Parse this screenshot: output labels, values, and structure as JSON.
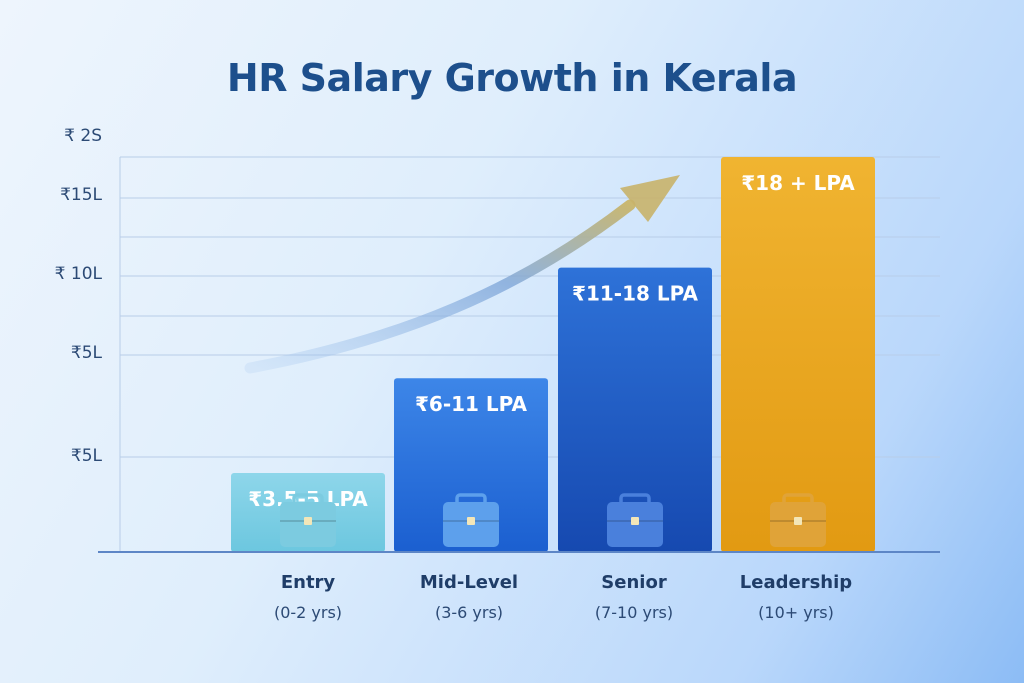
{
  "chart_data": {
    "type": "bar",
    "title": "HR Salary Growth in Kerala",
    "y_tick_labels": [
      "₹ 2S",
      "₹15L",
      "₹ 10L",
      "₹5L",
      "₹5L"
    ],
    "categories": [
      "Entry",
      "Mid-Level",
      "Senior",
      "Leadership"
    ],
    "category_subtitles": [
      "(0-2 yrs)",
      "(3-6 yrs)",
      "(7-10 yrs)",
      "(10+ yrs)"
    ],
    "data_labels": [
      "₹3.5-5 LPA",
      "₹6-11 LPA",
      "₹11-18 LPA",
      "₹18 + LPA"
    ],
    "values": [
      5,
      11,
      18,
      25
    ],
    "ylim": [
      0,
      25
    ],
    "grid": true,
    "legend": "none",
    "trend_arrow": true,
    "icon": "briefcase-icon",
    "colors": {
      "title": "#1d4f8c",
      "bars_top": [
        "#8ed6ea",
        "#3d86e8",
        "#2e72d8",
        "#f0b431"
      ],
      "bars_bottom": [
        "#6cc7df",
        "#1b5fd0",
        "#1649b0",
        "#e29a12"
      ],
      "briefcase": [
        "#7ccbe0",
        "#5da0ec",
        "#4a80dc",
        "#e0a338"
      ]
    }
  }
}
